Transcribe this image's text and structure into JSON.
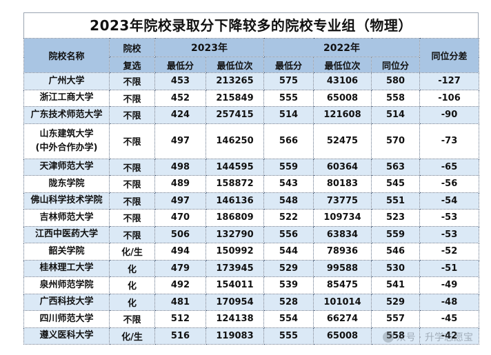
{
  "title": "2023年院校录取分下降较多的院校专业组（物理）",
  "headers": {
    "school": "院校名称",
    "reselect_line1": "院校",
    "reselect_line2": "复选",
    "year2023": "2023年",
    "year2022": "2022年",
    "diff": "同位分差",
    "min_score": "最低分",
    "min_rank": "最低位次",
    "min_score_2022": "最低分",
    "min_rank_2022": "最低位次",
    "same_rank_score": "同位分"
  },
  "rows": [
    {
      "school": "广州大学",
      "req": "不限",
      "s23": "453",
      "r23": "213265",
      "s22": "575",
      "r22": "43106",
      "same": "580",
      "diff": "-127"
    },
    {
      "school": "浙江工商大学",
      "req": "不限",
      "s23": "452",
      "r23": "215849",
      "s22": "555",
      "r22": "65008",
      "same": "558",
      "diff": "-106"
    },
    {
      "school": "广东技术师范大学",
      "req": "不限",
      "s23": "424",
      "r23": "257415",
      "s22": "514",
      "r22": "121608",
      "same": "514",
      "diff": "-90"
    },
    {
      "school": "山东建筑大学",
      "school2": "(中外合作办学)",
      "req": "不限",
      "s23": "497",
      "r23": "146250",
      "s22": "566",
      "r22": "52475",
      "same": "570",
      "diff": "-73"
    },
    {
      "school": "天津师范大学",
      "req": "不限",
      "s23": "498",
      "r23": "144595",
      "s22": "559",
      "r22": "60364",
      "same": "563",
      "diff": "-65"
    },
    {
      "school": "陇东学院",
      "req": "不限",
      "s23": "489",
      "r23": "158872",
      "s22": "543",
      "r22": "80183",
      "same": "545",
      "diff": "-56"
    },
    {
      "school": "佛山科学技术学院",
      "req": "不限",
      "s23": "497",
      "r23": "146136",
      "s22": "548",
      "r22": "73775",
      "same": "551",
      "diff": "-54"
    },
    {
      "school": "吉林师范大学",
      "req": "不限",
      "s23": "470",
      "r23": "186809",
      "s22": "522",
      "r22": "109734",
      "same": "523",
      "diff": "-53"
    },
    {
      "school": "江西中医药大学",
      "req": "不限",
      "s23": "506",
      "r23": "132790",
      "s22": "556",
      "r22": "63834",
      "same": "559",
      "diff": "-53"
    },
    {
      "school": "韶关学院",
      "req": "化/生",
      "s23": "494",
      "r23": "150992",
      "s22": "544",
      "r22": "78936",
      "same": "546",
      "diff": "-52"
    },
    {
      "school": "桂林理工大学",
      "req": "化",
      "s23": "479",
      "r23": "173945",
      "s22": "529",
      "r22": "99588",
      "same": "530",
      "diff": "-51"
    },
    {
      "school": "泉州师范学院",
      "req": "化",
      "s23": "492",
      "r23": "154011",
      "s22": "539",
      "r22": "85475",
      "same": "541",
      "diff": "-49"
    },
    {
      "school": "广西科技大学",
      "req": "化",
      "s23": "481",
      "r23": "170954",
      "s22": "528",
      "r22": "101014",
      "same": "529",
      "diff": "-48"
    },
    {
      "school": "四川师范大学",
      "req": "不限",
      "s23": "512",
      "r23": "124138",
      "s22": "554",
      "r22": "66274",
      "same": "557",
      "diff": "-45"
    },
    {
      "school": "遵义医科大学",
      "req": "化/生",
      "s23": "516",
      "r23": "119083",
      "s22": "555",
      "r22": "65008",
      "same": "558",
      "diff": "-42"
    }
  ],
  "watermark": "众号 · 升学志愿宝"
}
